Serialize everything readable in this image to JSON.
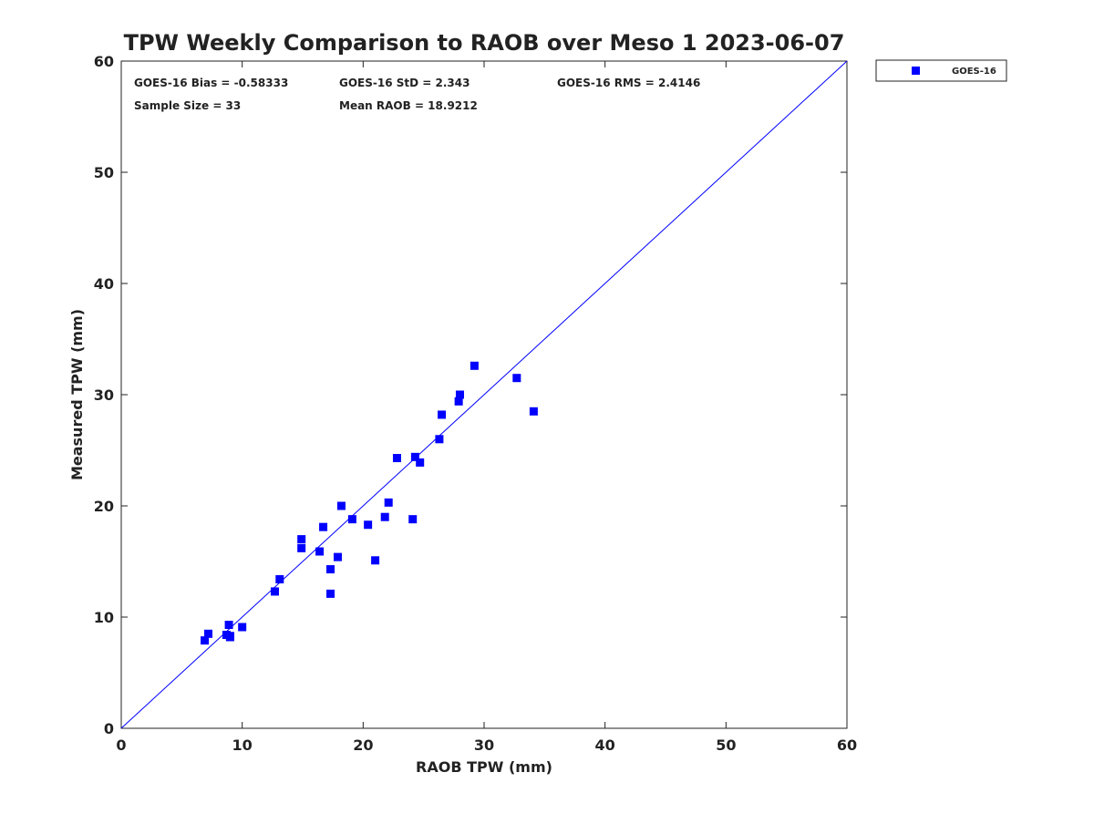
{
  "chart_data": {
    "type": "scatter",
    "title": "TPW Weekly Comparison to RAOB over Meso 1 2023-06-07",
    "xlabel": "RAOB TPW (mm)",
    "ylabel": "Measured TPW (mm)",
    "xlim": [
      0,
      60
    ],
    "ylim": [
      0,
      60
    ],
    "xticks": [
      0,
      10,
      20,
      30,
      40,
      50,
      60
    ],
    "yticks": [
      0,
      10,
      20,
      30,
      40,
      50,
      60
    ],
    "grid": false,
    "legend_position": "outside-top-right",
    "reference_line": {
      "name": "1:1 line",
      "color": "#0000ff",
      "x": [
        0,
        60
      ],
      "y": [
        0,
        60
      ]
    },
    "stats": [
      "GOES-16 Bias = -0.58333",
      "GOES-16 StD = 2.343",
      "GOES-16 RMS = 2.4146",
      "Sample Size = 33",
      "Mean RAOB = 18.9212"
    ],
    "series": [
      {
        "name": "GOES-16",
        "color": "#0000ff",
        "marker": "square",
        "x": [
          6.9,
          7.2,
          8.9,
          8.7,
          9.0,
          9.0,
          10.0,
          12.7,
          13.1,
          14.9,
          14.9,
          16.4,
          16.7,
          17.3,
          17.3,
          17.9,
          18.2,
          19.1,
          20.4,
          21.0,
          21.8,
          22.1,
          24.1,
          22.8,
          24.3,
          24.7,
          26.3,
          26.5,
          27.9,
          28.0,
          29.2,
          32.7,
          34.1
        ],
        "y": [
          7.9,
          8.5,
          9.3,
          8.4,
          8.2,
          8.3,
          9.1,
          12.3,
          13.4,
          17.0,
          16.2,
          15.9,
          18.1,
          12.1,
          14.3,
          15.4,
          20.0,
          18.8,
          18.3,
          15.1,
          19.0,
          20.3,
          18.8,
          24.3,
          24.4,
          23.9,
          26.0,
          28.2,
          29.4,
          30.0,
          32.6,
          31.5,
          28.5
        ]
      }
    ]
  }
}
